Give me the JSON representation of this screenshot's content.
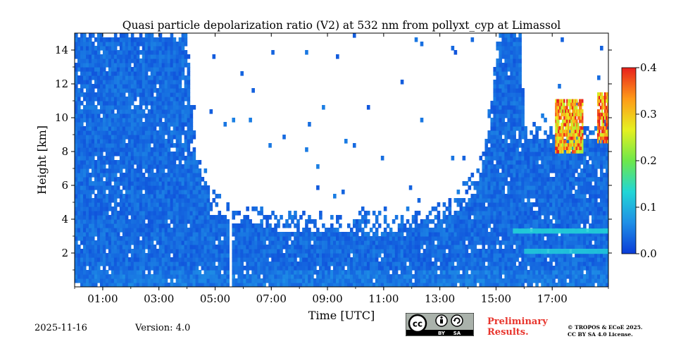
{
  "chart_data": {
    "type": "heatmap",
    "title": "Quasi particle depolarization ratio (V2) at 532 nm from pollyxt_cyp at Limassol",
    "xlabel": "Time [UTC]",
    "ylabel": "Height [km]",
    "xlim": [
      0.0,
      19.0
    ],
    "ylim": [
      0.0,
      15.0
    ],
    "x_ticks": [
      {
        "value": 1,
        "label": "01:00"
      },
      {
        "value": 3,
        "label": "03:00"
      },
      {
        "value": 5,
        "label": "05:00"
      },
      {
        "value": 7,
        "label": "07:00"
      },
      {
        "value": 9,
        "label": "09:00"
      },
      {
        "value": 11,
        "label": "11:00"
      },
      {
        "value": 13,
        "label": "13:00"
      },
      {
        "value": 15,
        "label": "15:00"
      },
      {
        "value": 17,
        "label": "17:00"
      }
    ],
    "y_ticks": [
      {
        "value": 2,
        "label": "2"
      },
      {
        "value": 4,
        "label": "4"
      },
      {
        "value": 6,
        "label": "6"
      },
      {
        "value": 8,
        "label": "8"
      },
      {
        "value": 10,
        "label": "10"
      },
      {
        "value": 12,
        "label": "12"
      },
      {
        "value": 14,
        "label": "14"
      }
    ],
    "colorbar": {
      "range": [
        0.0,
        0.4
      ],
      "ticks": [
        {
          "value": 0.0,
          "label": "0.0"
        },
        {
          "value": 0.1,
          "label": "0.1"
        },
        {
          "value": 0.2,
          "label": "0.2"
        },
        {
          "value": 0.3,
          "label": "0.3"
        },
        {
          "value": 0.4,
          "label": "0.4"
        }
      ],
      "colors": [
        "#0a3cd8",
        "#1f8fe6",
        "#22d6d6",
        "#6ee84a",
        "#e6f020",
        "#ff9a18",
        "#e8201c"
      ]
    },
    "data_top_profile": [
      {
        "t": 0.0,
        "h": 15.0
      },
      {
        "t": 3.0,
        "h": 15.0
      },
      {
        "t": 4.0,
        "h": 15.0
      },
      {
        "t": 4.2,
        "h": 9.0
      },
      {
        "t": 4.5,
        "h": 6.5
      },
      {
        "t": 5.0,
        "h": 4.7
      },
      {
        "t": 5.5,
        "h": 4.2
      },
      {
        "t": 6.0,
        "h": 4.0
      },
      {
        "t": 7.0,
        "h": 3.7
      },
      {
        "t": 8.0,
        "h": 3.55
      },
      {
        "t": 9.0,
        "h": 3.5
      },
      {
        "t": 10.0,
        "h": 3.5
      },
      {
        "t": 11.0,
        "h": 3.6
      },
      {
        "t": 12.0,
        "h": 3.8
      },
      {
        "t": 13.0,
        "h": 4.2
      },
      {
        "t": 14.0,
        "h": 5.2
      },
      {
        "t": 14.5,
        "h": 7.0
      },
      {
        "t": 14.8,
        "h": 10.0
      },
      {
        "t": 15.0,
        "h": 13.5
      },
      {
        "t": 15.2,
        "h": 15.0
      },
      {
        "t": 15.9,
        "h": 15.0
      },
      {
        "t": 16.0,
        "h": 9.0
      },
      {
        "t": 19.0,
        "h": 9.0
      }
    ],
    "data_gaps": [
      {
        "t_start": 5.45,
        "t_end": 5.62
      }
    ],
    "aerosol_layers": [
      {
        "t_start": 15.6,
        "t_end": 19.0,
        "height": 3.3,
        "value": 0.13
      },
      {
        "t_start": 16.0,
        "t_end": 19.0,
        "height": 2.1,
        "value": 0.12
      }
    ],
    "high_depol_layers": [
      {
        "t_start": 17.1,
        "t_end": 18.1,
        "h_bottom": 7.9,
        "h_top": 11.0,
        "value": 0.32
      },
      {
        "t_start": 18.6,
        "t_end": 19.0,
        "h_bottom": 8.5,
        "h_top": 11.4,
        "value": 0.34
      }
    ],
    "background_value": 0.02
  },
  "footer": {
    "date": "2025-11-16",
    "version": "Version: 4.0",
    "preliminary_line1": "Preliminary",
    "preliminary_line2": "Results.",
    "copyright_line1": "© TROPOS & ECoE 2025.",
    "copyright_line2": "CC BY SA 4.0 License.",
    "license_badge": {
      "cc": "cc",
      "by": "BY",
      "sa": "SA"
    }
  }
}
